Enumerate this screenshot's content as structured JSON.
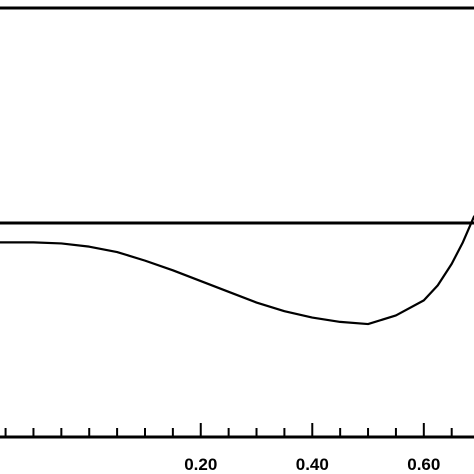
{
  "chart_data": {
    "type": "line",
    "title": "",
    "xlabel": "",
    "ylabel": "",
    "xlim": [
      -0.16,
      0.69
    ],
    "ylim": [
      -1.0,
      1.0
    ],
    "x_ticks": [
      0.2,
      0.4,
      0.6
    ],
    "x_tick_labels": [
      "0.20",
      "0.40",
      "0.60"
    ],
    "x_minor_step": 0.05,
    "reference_lines": [
      {
        "y": 0.0
      },
      {
        "y": 1.0
      }
    ],
    "series": [
      {
        "x": [
          -0.16,
          -0.1,
          -0.05,
          0.0,
          0.05,
          0.1,
          0.15,
          0.2,
          0.25,
          0.3,
          0.35,
          0.4,
          0.45,
          0.5,
          0.55,
          0.6,
          0.625,
          0.65,
          0.67,
          0.69
        ],
        "y": [
          -0.09,
          -0.09,
          -0.095,
          -0.11,
          -0.135,
          -0.175,
          -0.22,
          -0.27,
          -0.32,
          -0.37,
          -0.41,
          -0.44,
          -0.46,
          -0.47,
          -0.43,
          -0.36,
          -0.29,
          -0.19,
          -0.09,
          0.03
        ]
      }
    ],
    "grid": false,
    "legend": "none"
  },
  "colors": {
    "line": "#000000",
    "background": "#ffffff"
  }
}
